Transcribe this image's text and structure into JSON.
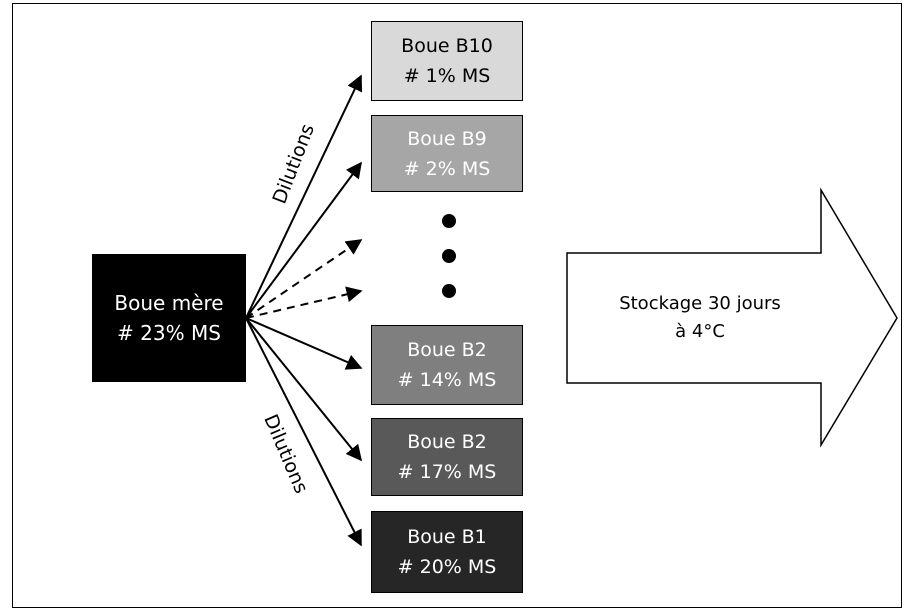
{
  "mother": {
    "name": "Boue mère",
    "ms": "# 23% MS"
  },
  "samples": [
    {
      "name": "Boue B10",
      "ms": "# 1% MS"
    },
    {
      "name": "Boue B9",
      "ms": "# 2% MS"
    },
    {
      "name": "Boue B2",
      "ms": "# 14% MS"
    },
    {
      "name": "Boue B2",
      "ms": "# 17% MS"
    },
    {
      "name": "Boue B1",
      "ms": "# 20% MS"
    }
  ],
  "dilution_label_top": "Dilutions",
  "dilution_label_bottom": "Dilutions",
  "storage": {
    "line1": "Stockage 30 jours",
    "line2": "à 4°C"
  }
}
